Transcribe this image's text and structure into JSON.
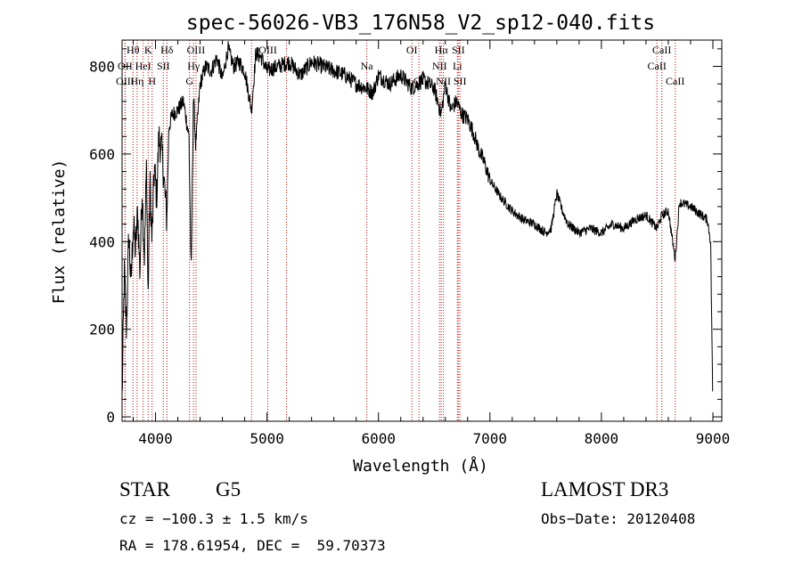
{
  "chart_data": {
    "type": "line",
    "title": "spec-56026-VB3_176N58_V2_sp12-040.fits",
    "xlabel": "Wavelength (Å)",
    "ylabel": "Flux (relative)",
    "xlim": [
      3700,
      9080
    ],
    "ylim": [
      -10,
      860
    ],
    "x_ticks": [
      4000,
      5000,
      6000,
      7000,
      8000,
      9000
    ],
    "x_tick_labels": [
      "4000",
      "5000",
      "6000",
      "7000",
      "8000",
      "9000"
    ],
    "y_ticks": [
      0,
      200,
      400,
      600,
      800
    ],
    "y_tick_labels": [
      "0",
      "200",
      "400",
      "600",
      "800"
    ],
    "grid": false,
    "line_color": "#000000",
    "marker_color": "#cc0000",
    "spectrum": {
      "x": [
        3700,
        3720,
        3740,
        3760,
        3780,
        3800,
        3820,
        3840,
        3860,
        3880,
        3900,
        3920,
        3933,
        3950,
        3968,
        3990,
        4010,
        4030,
        4060,
        4101,
        4120,
        4150,
        4200,
        4250,
        4300,
        4320,
        4340,
        4360,
        4400,
        4450,
        4500,
        4550,
        4600,
        4650,
        4700,
        4750,
        4800,
        4861,
        4900,
        4950,
        5000,
        5100,
        5200,
        5300,
        5400,
        5500,
        5600,
        5700,
        5800,
        5890,
        5950,
        6000,
        6100,
        6200,
        6300,
        6400,
        6500,
        6563,
        6600,
        6650,
        6700,
        6750,
        6800,
        6850,
        6900,
        6950,
        7000,
        7100,
        7200,
        7300,
        7400,
        7500,
        7550,
        7600,
        7650,
        7700,
        7800,
        7900,
        8000,
        8100,
        8200,
        8300,
        8400,
        8498,
        8542,
        8600,
        8662,
        8700,
        8800,
        8900,
        8950,
        8980,
        9000
      ],
      "y": [
        40,
        330,
        200,
        420,
        300,
        440,
        380,
        470,
        330,
        520,
        360,
        580,
        260,
        540,
        400,
        570,
        500,
        640,
        600,
        450,
        660,
        690,
        700,
        720,
        640,
        320,
        740,
        620,
        760,
        800,
        790,
        820,
        770,
        840,
        800,
        810,
        790,
        700,
        830,
        820,
        790,
        800,
        810,
        780,
        810,
        800,
        790,
        780,
        760,
        750,
        740,
        780,
        760,
        780,
        750,
        770,
        750,
        690,
        760,
        700,
        720,
        690,
        680,
        650,
        610,
        580,
        540,
        500,
        470,
        450,
        440,
        420,
        430,
        510,
        470,
        440,
        420,
        430,
        420,
        440,
        430,
        450,
        460,
        430,
        460,
        470,
        360,
        490,
        480,
        460,
        450,
        400,
        20
      ]
    },
    "lines": [
      {
        "label": "Hθ",
        "x": 3798,
        "row": 0
      },
      {
        "label": "OII",
        "x": 3727,
        "row": 1
      },
      {
        "label": "OIII",
        "x": 3727,
        "row": 2
      },
      {
        "label": "K",
        "x": 3934,
        "row": 0
      },
      {
        "label": "HeI",
        "x": 3889,
        "row": 1
      },
      {
        "label": "Hη",
        "x": 3835,
        "row": 2
      },
      {
        "label": "Hδ",
        "x": 4102,
        "row": 0
      },
      {
        "label": "SII",
        "x": 4070,
        "row": 1
      },
      {
        "label": "H",
        "x": 3969,
        "row": 2
      },
      {
        "label": "OIII",
        "x": 4363,
        "row": 0
      },
      {
        "label": "Hγ",
        "x": 4341,
        "row": 1
      },
      {
        "label": "G",
        "x": 4305,
        "row": 2
      },
      {
        "label": "OIII",
        "x": 5007,
        "row": 0
      },
      {
        "label": "Na",
        "x": 5895,
        "row": 1
      },
      {
        "label": "OI",
        "x": 6300,
        "row": 0
      },
      {
        "label": "OI",
        "x": 6363,
        "row": 2
      },
      {
        "label": "Hα",
        "x": 6563,
        "row": 0
      },
      {
        "label": "NII",
        "x": 6548,
        "row": 1
      },
      {
        "label": "NII",
        "x": 6583,
        "row": 2
      },
      {
        "label": "SII",
        "x": 6716,
        "row": 0
      },
      {
        "label": "Li",
        "x": 6708,
        "row": 1
      },
      {
        "label": "SII",
        "x": 6731,
        "row": 2
      },
      {
        "label": "CaII",
        "x": 8542,
        "row": 0
      },
      {
        "label": "CaII",
        "x": 8498,
        "row": 1
      },
      {
        "label": "CaII",
        "x": 8662,
        "row": 2
      }
    ],
    "extra_marker_x": [
      4861,
      5175
    ]
  },
  "info": {
    "class_label": "STAR",
    "subclass_label": "G5",
    "survey_label": "LAMOST DR3",
    "cz_text": "cz = −100.3 ± 1.5 km/s",
    "obsdate_text": "Obs−Date: 20120408",
    "radec_text": "RA = 178.61954, DEC =  59.70373"
  }
}
